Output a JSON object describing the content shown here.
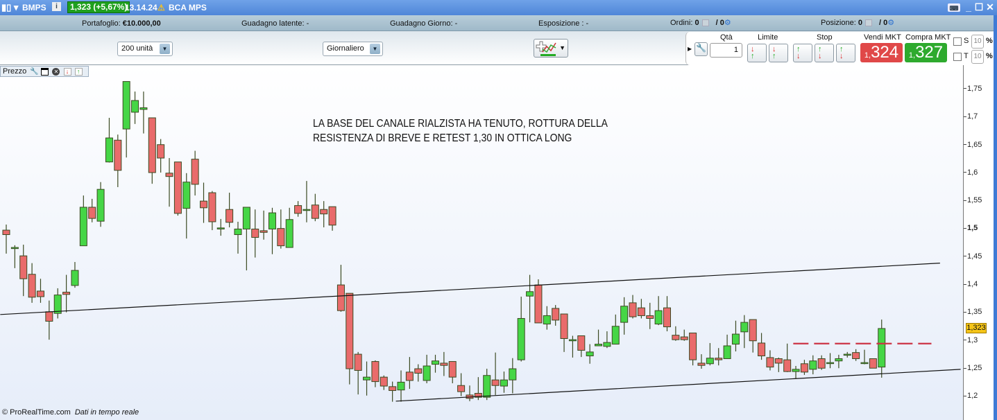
{
  "titlebar": {
    "symbol": "BMPS",
    "price_change": "1,323 (+5,67%)",
    "time": "13.14.24",
    "name": "BCA MPS"
  },
  "status": {
    "portfolio_label": "Portafoglio:",
    "portfolio_value": "€10.000,00",
    "latent_label": "Guadagno latente:",
    "latent_value": "-",
    "day_label": "Guadagno Giorno:",
    "day_value": "-",
    "exposure_label": "Esposizione :",
    "exposure_value": "-",
    "orders_label": "Ordini:",
    "orders_a": "0",
    "orders_b": "/ 0",
    "position_label": "Posizione:",
    "position_a": "0",
    "position_b": "/ 0"
  },
  "toolbar": {
    "units": "200 unità",
    "period": "Giornaliero"
  },
  "order": {
    "qty_label": "Qtà",
    "qty_value": "1",
    "limit_label": "Limite",
    "stop_label": "Stop",
    "sell_label": "Vendi MKT",
    "sell_prefix": "1,",
    "sell_value": "324",
    "buy_label": "Compra MKT",
    "buy_prefix": "1,",
    "buy_value": "327",
    "s_label": "S",
    "s_value": "10",
    "t_label": "T",
    "t_value": "10",
    "pct": "%"
  },
  "chart_header": {
    "label": "Prezzo"
  },
  "annotation": [
    "LA BASE DEL CANALE RIALZISTA HA TENUTO, ROTTURA DELLA",
    "RESISTENZA DI BREVE E RETEST 1,30 IN OTTICA LONG"
  ],
  "footer": {
    "copyright": "© ProRealTime.com",
    "realtime": "Dati in tempo reale"
  },
  "colors": {
    "up": "#46d646",
    "down": "#e96b6b",
    "outline": "#3b4a22",
    "dashed": "#cc3344"
  },
  "chart_data": {
    "type": "candlestick",
    "ylim": [
      1.162,
      1.792
    ],
    "yticks": [
      "1,75",
      "1,7",
      "1,65",
      "1,6",
      "1,55",
      "1,5",
      "1,45",
      "1,4",
      "1,35",
      "1,3",
      "1,25",
      "1,2"
    ],
    "ytick_values": [
      1.75,
      1.7,
      1.65,
      1.6,
      1.55,
      1.5,
      1.45,
      1.4,
      1.35,
      1.3,
      1.25,
      1.2
    ],
    "last_price_label": "1,323",
    "last_price": 1.323,
    "grid": false,
    "ohlc": [
      [
        1.498,
        1.508,
        1.456,
        1.49
      ],
      [
        1.465,
        1.471,
        1.43,
        1.467
      ],
      [
        1.452,
        1.472,
        1.38,
        1.411
      ],
      [
        1.419,
        1.439,
        1.368,
        1.378
      ],
      [
        1.389,
        1.411,
        1.368,
        1.379
      ],
      [
        1.352,
        1.372,
        1.302,
        1.335
      ],
      [
        1.349,
        1.394,
        1.34,
        1.382
      ],
      [
        1.387,
        1.418,
        1.351,
        1.383
      ],
      [
        1.399,
        1.441,
        1.395,
        1.426
      ],
      [
        1.47,
        1.56,
        1.47,
        1.539
      ],
      [
        1.539,
        1.554,
        1.512,
        1.519
      ],
      [
        1.514,
        1.584,
        1.504,
        1.571
      ],
      [
        1.62,
        1.699,
        1.619,
        1.663
      ],
      [
        1.659,
        1.669,
        1.575,
        1.605
      ],
      [
        1.679,
        1.764,
        1.628,
        1.764
      ],
      [
        1.709,
        1.746,
        1.688,
        1.73
      ],
      [
        1.714,
        1.746,
        1.671,
        1.717
      ],
      [
        1.699,
        1.699,
        1.581,
        1.601
      ],
      [
        1.651,
        1.661,
        1.601,
        1.627
      ],
      [
        1.6,
        1.627,
        1.54,
        1.594
      ],
      [
        1.62,
        1.62,
        1.524,
        1.528
      ],
      [
        1.537,
        1.6,
        1.483,
        1.584
      ],
      [
        1.625,
        1.64,
        1.56,
        1.58
      ],
      [
        1.55,
        1.583,
        1.511,
        1.538
      ],
      [
        1.565,
        1.568,
        1.498,
        1.513
      ],
      [
        1.5,
        1.518,
        1.488,
        1.502
      ],
      [
        1.535,
        1.565,
        1.503,
        1.512
      ],
      [
        1.49,
        1.513,
        1.456,
        1.5
      ],
      [
        1.5,
        1.539,
        1.426,
        1.539
      ],
      [
        1.5,
        1.535,
        1.449,
        1.485
      ],
      [
        1.497,
        1.533,
        1.481,
        1.494
      ],
      [
        1.5,
        1.538,
        1.455,
        1.529
      ],
      [
        1.501,
        1.535,
        1.465,
        1.47
      ],
      [
        1.467,
        1.538,
        1.467,
        1.517
      ],
      [
        1.542,
        1.55,
        1.522,
        1.528
      ],
      [
        1.534,
        1.586,
        1.512,
        1.535
      ],
      [
        1.543,
        1.563,
        1.514,
        1.519
      ],
      [
        1.535,
        1.55,
        1.503,
        1.527
      ],
      [
        1.54,
        1.54,
        1.497,
        1.507
      ],
      [
        1.4,
        1.436,
        1.352,
        1.354
      ],
      [
        1.385,
        1.385,
        1.222,
        1.25
      ],
      [
        1.276,
        1.28,
        1.204,
        1.247
      ],
      [
        1.23,
        1.263,
        1.202,
        1.235
      ],
      [
        1.263,
        1.265,
        1.217,
        1.227
      ],
      [
        1.235,
        1.238,
        1.212,
        1.219
      ],
      [
        1.218,
        1.227,
        1.191,
        1.211
      ],
      [
        1.212,
        1.247,
        1.191,
        1.226
      ],
      [
        1.244,
        1.271,
        1.214,
        1.229
      ],
      [
        1.25,
        1.258,
        1.227,
        1.242
      ],
      [
        1.229,
        1.275,
        1.224,
        1.255
      ],
      [
        1.258,
        1.275,
        1.243,
        1.264
      ],
      [
        1.26,
        1.28,
        1.237,
        1.256
      ],
      [
        1.263,
        1.263,
        1.224,
        1.235
      ],
      [
        1.22,
        1.242,
        1.201,
        1.209
      ],
      [
        1.203,
        1.22,
        1.192,
        1.197
      ],
      [
        1.206,
        1.235,
        1.194,
        1.199
      ],
      [
        1.199,
        1.25,
        1.194,
        1.238
      ],
      [
        1.23,
        1.279,
        1.203,
        1.22
      ],
      [
        1.219,
        1.245,
        1.207,
        1.23
      ],
      [
        1.23,
        1.269,
        1.206,
        1.25
      ],
      [
        1.266,
        1.379,
        1.263,
        1.34
      ],
      [
        1.38,
        1.418,
        1.333,
        1.388
      ],
      [
        1.4,
        1.41,
        1.332,
        1.332
      ],
      [
        1.33,
        1.362,
        1.32,
        1.345
      ],
      [
        1.358,
        1.364,
        1.327,
        1.337
      ],
      [
        1.348,
        1.348,
        1.28,
        1.304
      ],
      [
        1.3,
        1.309,
        1.27,
        1.302
      ],
      [
        1.309,
        1.309,
        1.271,
        1.283
      ],
      [
        1.273,
        1.294,
        1.259,
        1.28
      ],
      [
        1.291,
        1.32,
        1.291,
        1.294
      ],
      [
        1.29,
        1.317,
        1.287,
        1.297
      ],
      [
        1.294,
        1.347,
        1.294,
        1.326
      ],
      [
        1.333,
        1.378,
        1.311,
        1.362
      ],
      [
        1.368,
        1.382,
        1.34,
        1.343
      ],
      [
        1.359,
        1.375,
        1.34,
        1.345
      ],
      [
        1.345,
        1.368,
        1.321,
        1.34
      ],
      [
        1.33,
        1.38,
        1.328,
        1.354
      ],
      [
        1.359,
        1.38,
        1.317,
        1.325
      ],
      [
        1.31,
        1.326,
        1.3,
        1.302
      ],
      [
        1.307,
        1.32,
        1.3,
        1.302
      ],
      [
        1.314,
        1.314,
        1.256,
        1.266
      ],
      [
        1.26,
        1.276,
        1.25,
        1.256
      ],
      [
        1.259,
        1.296,
        1.256,
        1.269
      ],
      [
        1.269,
        1.287,
        1.256,
        1.266
      ],
      [
        1.268,
        1.311,
        1.268,
        1.291
      ],
      [
        1.294,
        1.336,
        1.281,
        1.312
      ],
      [
        1.316,
        1.346,
        1.287,
        1.333
      ],
      [
        1.338,
        1.338,
        1.279,
        1.3
      ],
      [
        1.296,
        1.314,
        1.266,
        1.273
      ],
      [
        1.27,
        1.283,
        1.247,
        1.253
      ],
      [
        1.268,
        1.27,
        1.244,
        1.26
      ],
      [
        1.266,
        1.295,
        1.244,
        1.245
      ],
      [
        1.245,
        1.255,
        1.232,
        1.249
      ],
      [
        1.259,
        1.266,
        1.239,
        1.244
      ],
      [
        1.249,
        1.274,
        1.24,
        1.264
      ],
      [
        1.268,
        1.274,
        1.248,
        1.251
      ],
      [
        1.26,
        1.278,
        1.251,
        1.261
      ],
      [
        1.264,
        1.275,
        1.251,
        1.268
      ],
      [
        1.275,
        1.28,
        1.27,
        1.276
      ],
      [
        1.279,
        1.285,
        1.264,
        1.268
      ],
      [
        1.26,
        1.284,
        1.258,
        1.261
      ],
      [
        1.268,
        1.268,
        1.251,
        1.251
      ],
      [
        1.253,
        1.338,
        1.234,
        1.322
      ]
    ],
    "trendlines": [
      {
        "from": {
          "bar": -0.7,
          "price": 1.347
        },
        "to": {
          "bar": 108.8,
          "price": 1.439
        },
        "style": "solid"
      },
      {
        "from": {
          "bar": 45.4,
          "price": 1.192
        },
        "to": {
          "bar": 111.2,
          "price": 1.249
        },
        "style": "solid"
      },
      {
        "from": {
          "bar": 91.7,
          "price": 1.295
        },
        "to": {
          "bar": 107.8,
          "price": 1.295
        },
        "style": "dashed"
      }
    ]
  }
}
